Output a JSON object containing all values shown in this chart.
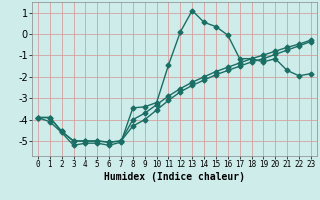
{
  "xlabel": "Humidex (Indice chaleur)",
  "ylabel": "",
  "background_color": "#ceecea",
  "grid_color": "#d4a0a0",
  "line_color": "#1a6e64",
  "x_min": -0.5,
  "x_max": 23.5,
  "y_min": -5.7,
  "y_max": 1.5,
  "yticks": [
    -5,
    -4,
    -3,
    -2,
    -1,
    0,
    1
  ],
  "xticks": [
    0,
    1,
    2,
    3,
    4,
    5,
    6,
    7,
    8,
    9,
    10,
    11,
    12,
    13,
    14,
    15,
    16,
    17,
    18,
    19,
    20,
    21,
    22,
    23
  ],
  "line1_x": [
    0,
    1,
    2,
    3,
    4,
    5,
    6,
    7,
    8,
    9,
    10,
    11,
    12,
    13,
    14,
    15,
    16,
    17,
    18,
    19,
    20,
    21,
    22,
    23
  ],
  "line1_y": [
    -3.9,
    -4.1,
    -4.6,
    -5.2,
    -5.1,
    -5.1,
    -5.2,
    -5.05,
    -3.45,
    -3.4,
    -3.2,
    -1.45,
    0.1,
    1.1,
    0.55,
    0.35,
    -0.05,
    -1.15,
    -1.15,
    -1.3,
    -1.15,
    -1.7,
    -1.95,
    -1.85
  ],
  "line2_x": [
    0,
    1,
    2,
    3,
    4,
    5,
    6,
    7,
    8,
    9,
    10,
    11,
    12,
    13,
    14,
    15,
    16,
    17,
    18,
    19,
    20,
    21,
    22,
    23
  ],
  "line2_y": [
    -3.9,
    -3.9,
    -4.55,
    -5.0,
    -5.0,
    -5.0,
    -5.05,
    -5.0,
    -4.3,
    -4.0,
    -3.55,
    -3.1,
    -2.7,
    -2.4,
    -2.15,
    -1.9,
    -1.7,
    -1.5,
    -1.3,
    -1.15,
    -0.95,
    -0.75,
    -0.55,
    -0.35
  ],
  "line3_x": [
    0,
    1,
    2,
    3,
    4,
    5,
    6,
    7,
    8,
    9,
    10,
    11,
    12,
    13,
    14,
    15,
    16,
    17,
    18,
    19,
    20,
    21,
    22,
    23
  ],
  "line3_y": [
    -3.9,
    -3.9,
    -4.55,
    -5.0,
    -5.0,
    -5.0,
    -5.05,
    -5.0,
    -4.0,
    -3.7,
    -3.3,
    -2.9,
    -2.55,
    -2.25,
    -2.0,
    -1.75,
    -1.55,
    -1.35,
    -1.15,
    -0.98,
    -0.8,
    -0.62,
    -0.47,
    -0.28
  ],
  "marker": "D",
  "markersize": 2.5,
  "linewidth": 1.0
}
